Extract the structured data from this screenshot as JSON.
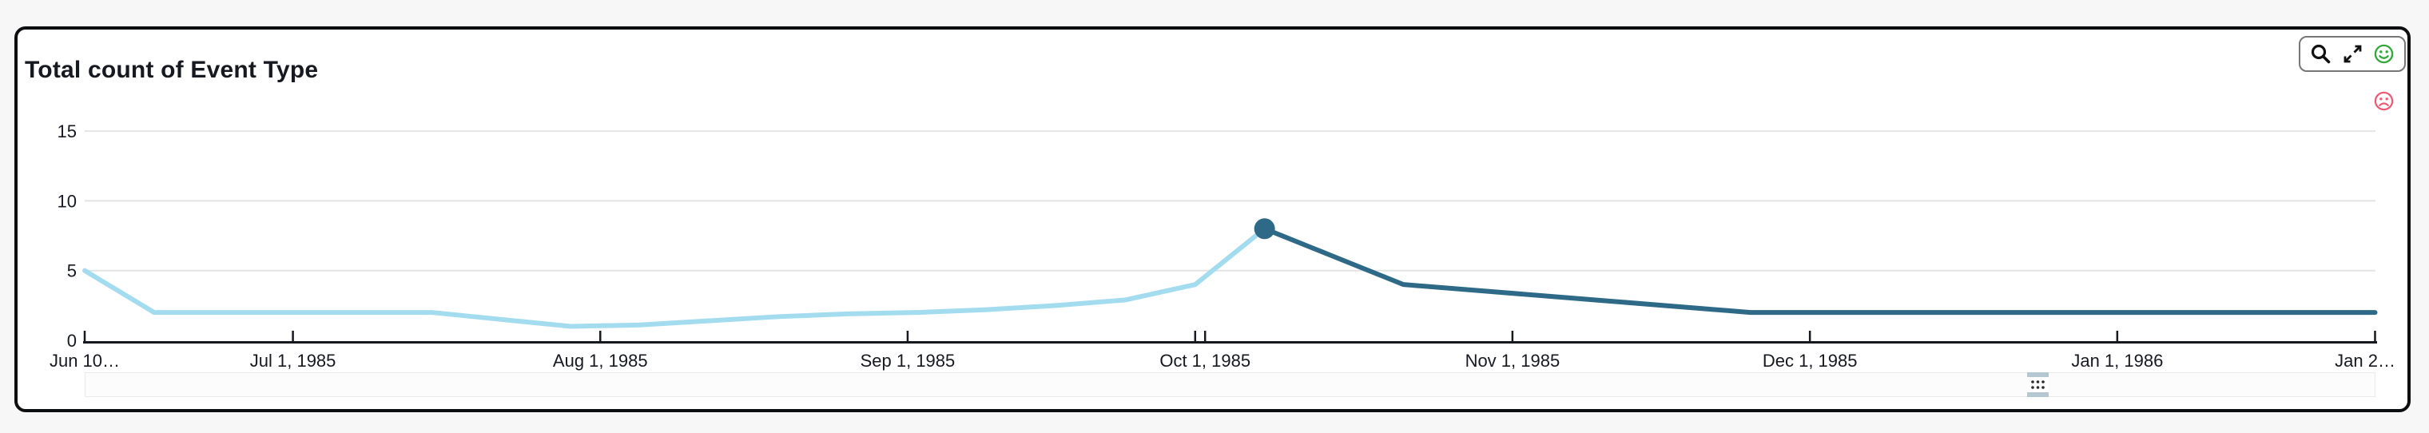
{
  "page": {
    "background_color": "#f7f7f8"
  },
  "card": {
    "title": "Total count of Event Type",
    "background_color": "#ffffff",
    "border_color": "#0d0e10",
    "selected": true
  },
  "toolbar": {
    "icons": [
      {
        "name": "search",
        "color": "#111111"
      },
      {
        "name": "maximize",
        "color": "#111111"
      },
      {
        "name": "happy-face",
        "color": "#31a83a"
      }
    ]
  },
  "feedback": {
    "sad_face_color": "#ec5c77",
    "happy_face_color": "#31a83a"
  },
  "scrollbar": {
    "track_color": "#fcfcfc",
    "handle_bar_color": "#b5c7d0",
    "handle_dot_color": "#2b2b2b"
  },
  "chart_data": {
    "type": "line",
    "title": "Total count of Event Type",
    "grid": true,
    "legend": "none",
    "y_axis": {
      "tick_labels": [
        "0",
        "5",
        "10",
        "15"
      ],
      "tick_values": [
        0,
        5,
        10,
        15
      ],
      "min": 0,
      "max": 16.5,
      "gridline_color": "#e4e4e4",
      "axis_color": "#16191f"
    },
    "x_axis": {
      "tick_labels": [
        "Jun 10…",
        "Jul 1, 1985",
        "Aug 1, 1985",
        "Sep 1, 1985",
        "Oct 1, 1985",
        "Nov 1, 1985",
        "Dec 1, 1985",
        "Jan 1, 1986",
        "Jan 2…"
      ],
      "tick_day_offsets": [
        0,
        21,
        52,
        83,
        113,
        144,
        174,
        205,
        231
      ],
      "extra_tick_day_offsets": [
        112
      ],
      "start_label": "Jun 10…",
      "end_label": "Jan 2…"
    },
    "series": [
      {
        "name": "Total count of Event Type",
        "color_before_highlight": "#a3dcef",
        "color_after_highlight": "#2e6a87",
        "line_width": 6,
        "highlight": {
          "date": "Oct 7, 1985",
          "day": 119,
          "value": 8,
          "marker": "filled-circle",
          "marker_color": "#2e6a87",
          "marker_radius": 13
        },
        "points": [
          {
            "date": "Jun 10, 1985",
            "day": 0,
            "value": 5
          },
          {
            "date": "Jun 17, 1985",
            "day": 7,
            "value": 2
          },
          {
            "date": "Jun 24, 1985",
            "day": 14,
            "value": 2
          },
          {
            "date": "Jul 1, 1985",
            "day": 21,
            "value": 2
          },
          {
            "date": "Jul 8, 1985",
            "day": 28,
            "value": 2
          },
          {
            "date": "Jul 15, 1985",
            "day": 35,
            "value": 2
          },
          {
            "date": "Jul 22, 1985",
            "day": 42,
            "value": 1.5
          },
          {
            "date": "Jul 29, 1985",
            "day": 49,
            "value": 1
          },
          {
            "date": "Aug 5, 1985",
            "day": 56,
            "value": 1.1
          },
          {
            "date": "Aug 12, 1985",
            "day": 63,
            "value": 1.4
          },
          {
            "date": "Aug 19, 1985",
            "day": 70,
            "value": 1.7
          },
          {
            "date": "Aug 26, 1985",
            "day": 77,
            "value": 1.9
          },
          {
            "date": "Sep 2, 1985",
            "day": 84,
            "value": 2
          },
          {
            "date": "Sep 9, 1985",
            "day": 91,
            "value": 2.2
          },
          {
            "date": "Sep 16, 1985",
            "day": 98,
            "value": 2.5
          },
          {
            "date": "Sep 23, 1985",
            "day": 105,
            "value": 2.9
          },
          {
            "date": "Sep 30, 1985",
            "day": 112,
            "value": 4
          },
          {
            "date": "Oct 7, 1985",
            "day": 119,
            "value": 8
          },
          {
            "date": "Oct 14, 1985",
            "day": 126,
            "value": 6
          },
          {
            "date": "Oct 21, 1985",
            "day": 133,
            "value": 4
          },
          {
            "date": "Oct 28, 1985",
            "day": 140,
            "value": 3.6
          },
          {
            "date": "Nov 4, 1985",
            "day": 147,
            "value": 3.2
          },
          {
            "date": "Nov 11, 1985",
            "day": 154,
            "value": 2.8
          },
          {
            "date": "Nov 18, 1985",
            "day": 161,
            "value": 2.4
          },
          {
            "date": "Nov 25, 1985",
            "day": 168,
            "value": 2
          },
          {
            "date": "Dec 2, 1985",
            "day": 175,
            "value": 2
          },
          {
            "date": "Dec 9, 1985",
            "day": 182,
            "value": 2
          },
          {
            "date": "Dec 16, 1985",
            "day": 189,
            "value": 2
          },
          {
            "date": "Dec 23, 1985",
            "day": 196,
            "value": 2
          },
          {
            "date": "Dec 30, 1985",
            "day": 203,
            "value": 2
          },
          {
            "date": "Jan 6, 1986",
            "day": 210,
            "value": 2
          },
          {
            "date": "Jan 13, 1986",
            "day": 217,
            "value": 2
          },
          {
            "date": "Jan 20, 1986",
            "day": 224,
            "value": 2
          },
          {
            "date": "Jan 27, 1986",
            "day": 231,
            "value": 2
          }
        ]
      }
    ]
  }
}
